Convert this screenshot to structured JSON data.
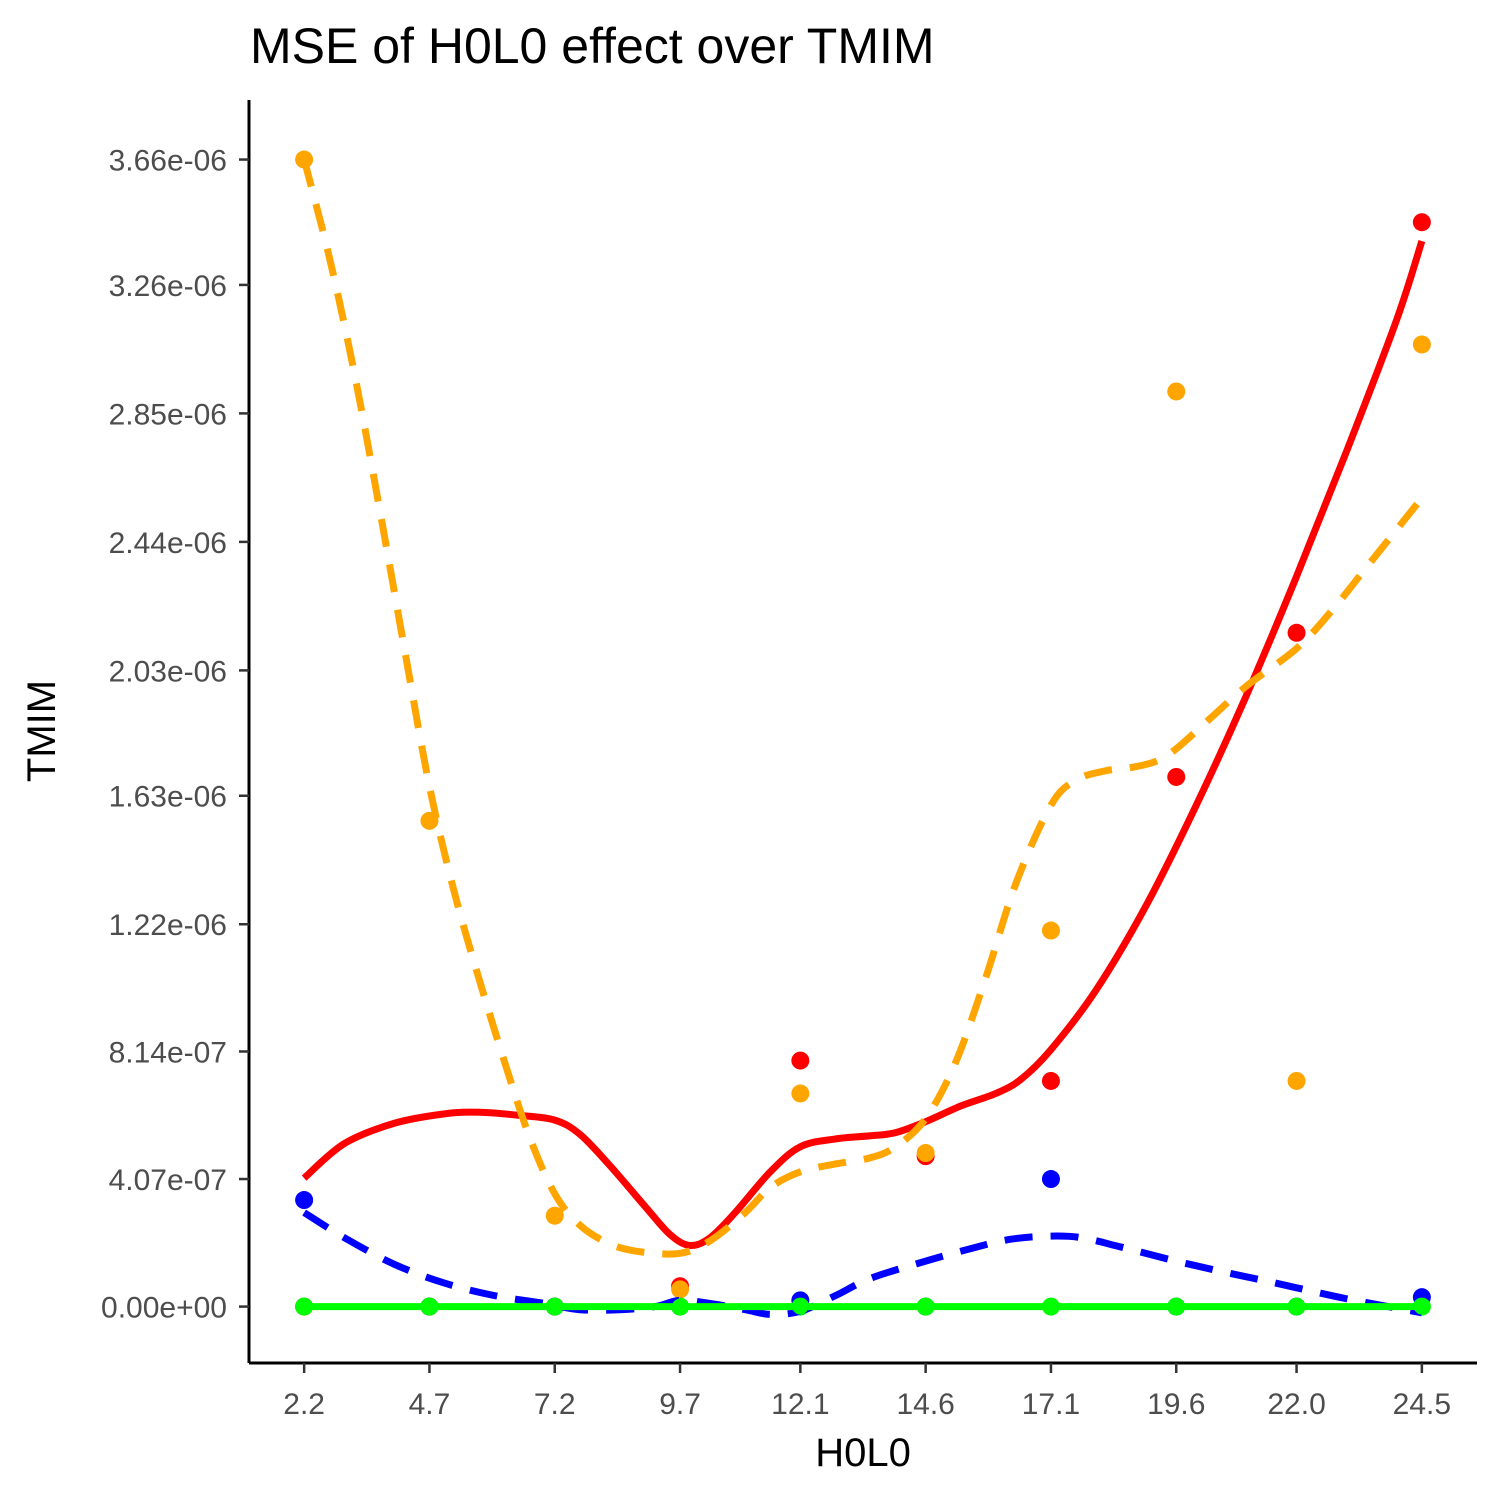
{
  "chart_data": {
    "type": "scatter",
    "title": "MSE of H0L0 effect over  TMIM",
    "xlabel": "H0L0",
    "ylabel": "TMIM",
    "x_ticks": [
      "2.2",
      "4.7",
      "7.2",
      "9.7",
      "12.1",
      "14.6",
      "17.1",
      "19.6",
      "22.0",
      "24.5"
    ],
    "y_ticks": [
      "0.00e+00",
      "4.07e-07",
      "8.14e-07",
      "1.22e-06",
      "1.63e-06",
      "2.03e-06",
      "2.44e-06",
      "2.85e-06",
      "3.26e-06",
      "3.66e-06"
    ],
    "xlim": [
      1.1,
      25.6
    ],
    "ylim": [
      -1.8e-07,
      3.85e-06
    ],
    "legend": "none",
    "grid": false,
    "series": [
      {
        "color": "#FF0000",
        "line_style": "solid",
        "points": [
          [
            2.2,
            0.0
          ],
          [
            4.7,
            0.0
          ],
          [
            7.2,
            0.0
          ],
          [
            9.7,
            6.5e-08
          ],
          [
            12.1,
            7.85e-07
          ],
          [
            14.6,
            4.8e-07
          ],
          [
            17.1,
            7.2e-07
          ],
          [
            19.6,
            1.69e-06
          ],
          [
            22.0,
            2.15e-06
          ],
          [
            24.5,
            3.46e-06
          ]
        ],
        "curve": [
          [
            2.2,
            4.1e-07
          ],
          [
            3.0,
            5.2e-07
          ],
          [
            4.0,
            5.85e-07
          ],
          [
            5.0,
            6.15e-07
          ],
          [
            5.7,
            6.2e-07
          ],
          [
            6.5,
            6.1e-07
          ],
          [
            7.2,
            5.95e-07
          ],
          [
            7.7,
            5.5e-07
          ],
          [
            8.3,
            4.5e-07
          ],
          [
            9.0,
            3.2e-07
          ],
          [
            9.5,
            2.3e-07
          ],
          [
            9.9,
            1.95e-07
          ],
          [
            10.3,
            2.2e-07
          ],
          [
            10.8,
            3e-07
          ],
          [
            11.5,
            4.3e-07
          ],
          [
            12.1,
            5.1e-07
          ],
          [
            12.8,
            5.35e-07
          ],
          [
            13.5,
            5.45e-07
          ],
          [
            14.0,
            5.55e-07
          ],
          [
            14.6,
            5.9e-07
          ],
          [
            15.3,
            6.4e-07
          ],
          [
            16.0,
            6.8e-07
          ],
          [
            16.5,
            7.25e-07
          ],
          [
            17.1,
            8.2e-07
          ],
          [
            18.0,
            1.01e-06
          ],
          [
            19.0,
            1.28e-06
          ],
          [
            20.0,
            1.6e-06
          ],
          [
            21.0,
            1.95e-06
          ],
          [
            22.0,
            2.33e-06
          ],
          [
            23.0,
            2.73e-06
          ],
          [
            24.0,
            3.15e-06
          ],
          [
            24.5,
            3.4e-06
          ]
        ]
      },
      {
        "color": "#FFA500",
        "line_style": "dashed",
        "points": [
          [
            2.2,
            3.66e-06
          ],
          [
            4.7,
            1.55e-06
          ],
          [
            7.2,
            2.9e-07
          ],
          [
            9.7,
            5.5e-08
          ],
          [
            12.1,
            6.8e-07
          ],
          [
            14.6,
            4.9e-07
          ],
          [
            17.1,
            1.2e-06
          ],
          [
            19.6,
            2.92e-06
          ],
          [
            22.0,
            7.2e-07
          ],
          [
            24.5,
            3.07e-06
          ]
        ],
        "curve": [
          [
            2.2,
            3.66e-06
          ],
          [
            2.7,
            3.35e-06
          ],
          [
            3.2,
            2.98e-06
          ],
          [
            3.7,
            2.55e-06
          ],
          [
            4.2,
            2.1e-06
          ],
          [
            4.7,
            1.66e-06
          ],
          [
            5.2,
            1.32e-06
          ],
          [
            5.7,
            1.04e-06
          ],
          [
            6.2,
            7.8e-07
          ],
          [
            6.7,
            5.4e-07
          ],
          [
            7.2,
            3.6e-07
          ],
          [
            7.7,
            2.6e-07
          ],
          [
            8.3,
            2e-07
          ],
          [
            8.9,
            1.75e-07
          ],
          [
            9.7,
            1.7e-07
          ],
          [
            10.3,
            2.1e-07
          ],
          [
            11.0,
            3e-07
          ],
          [
            11.5,
            3.8e-07
          ],
          [
            12.1,
            4.3e-07
          ],
          [
            12.8,
            4.55e-07
          ],
          [
            13.5,
            4.75e-07
          ],
          [
            14.0,
            5.1e-07
          ],
          [
            14.6,
            6e-07
          ],
          [
            15.2,
            7.8e-07
          ],
          [
            15.8,
            1.05e-06
          ],
          [
            16.4,
            1.35e-06
          ],
          [
            17.1,
            1.6e-06
          ],
          [
            17.6,
            1.68e-06
          ],
          [
            18.2,
            1.71e-06
          ],
          [
            18.7,
            1.72e-06
          ],
          [
            19.2,
            1.74e-06
          ],
          [
            19.6,
            1.78e-06
          ],
          [
            20.3,
            1.88e-06
          ],
          [
            21.0,
            1.98e-06
          ],
          [
            22.0,
            2.1e-06
          ],
          [
            22.7,
            2.22e-06
          ],
          [
            23.4,
            2.36e-06
          ],
          [
            24.0,
            2.48e-06
          ],
          [
            24.5,
            2.58e-06
          ]
        ]
      },
      {
        "color": "#0000FF",
        "line_style": "dashed",
        "points": [
          [
            2.2,
            3.4e-07
          ],
          [
            4.7,
            0.0
          ],
          [
            7.2,
            0.0
          ],
          [
            9.7,
            0.0
          ],
          [
            12.1,
            2e-08
          ],
          [
            14.6,
            0.0
          ],
          [
            17.1,
            4.07e-07
          ],
          [
            19.6,
            0.0
          ],
          [
            22.0,
            0.0
          ],
          [
            24.5,
            3e-08
          ]
        ],
        "curve": [
          [
            2.2,
            3e-07
          ],
          [
            3.0,
            2.2e-07
          ],
          [
            4.0,
            1.35e-07
          ],
          [
            5.0,
            7.5e-08
          ],
          [
            6.0,
            3.5e-08
          ],
          [
            7.0,
            1e-08
          ],
          [
            7.7,
            -1e-08
          ],
          [
            8.5,
            -1e-08
          ],
          [
            9.2,
            0.0
          ],
          [
            9.7,
            2e-08
          ],
          [
            10.3,
            1e-08
          ],
          [
            11.0,
            -1e-08
          ],
          [
            11.5,
            -2.5e-08
          ],
          [
            12.1,
            -1.5e-08
          ],
          [
            12.8,
            3.5e-08
          ],
          [
            13.5,
            9e-08
          ],
          [
            14.6,
            1.45e-07
          ],
          [
            15.5,
            1.85e-07
          ],
          [
            16.3,
            2.15e-07
          ],
          [
            17.1,
            2.25e-07
          ],
          [
            17.7,
            2.2e-07
          ],
          [
            18.5,
            1.9e-07
          ],
          [
            19.6,
            1.45e-07
          ],
          [
            20.5,
            1.12e-07
          ],
          [
            21.3,
            8.5e-08
          ],
          [
            22.0,
            6e-08
          ],
          [
            23.0,
            2.5e-08
          ],
          [
            24.0,
            -5e-09
          ],
          [
            24.5,
            -2e-08
          ]
        ]
      },
      {
        "color": "#00FF00",
        "line_style": "solid",
        "points": [
          [
            2.2,
            0.0
          ],
          [
            4.7,
            0.0
          ],
          [
            7.2,
            0.0
          ],
          [
            9.7,
            0.0
          ],
          [
            12.1,
            0.0
          ],
          [
            14.6,
            0.0
          ],
          [
            17.1,
            0.0
          ],
          [
            19.6,
            0.0
          ],
          [
            22.0,
            0.0
          ],
          [
            24.5,
            0.0
          ]
        ],
        "curve": [
          [
            2.2,
            0.0
          ],
          [
            24.5,
            0.0
          ]
        ]
      }
    ]
  }
}
